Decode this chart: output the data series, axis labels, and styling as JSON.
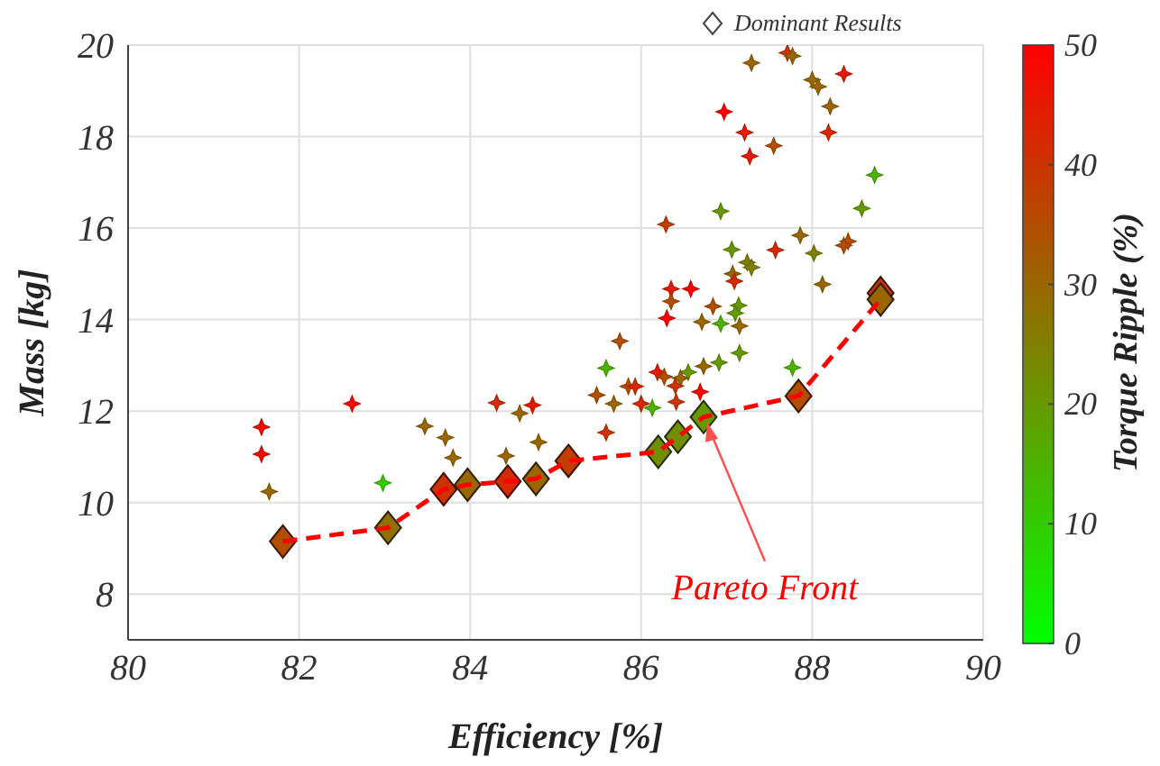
{
  "chart_data": {
    "type": "scatter",
    "xlabel": "Efficiency [%]",
    "ylabel": "Mass [kg]",
    "clabel": "Torque Ripple (%)",
    "xlim": [
      80,
      90
    ],
    "xticks": [
      80,
      82,
      84,
      86,
      88,
      90
    ],
    "ylim": [
      7,
      20
    ],
    "yticks": [
      8,
      10,
      12,
      14,
      16,
      18,
      20
    ],
    "clim": [
      0,
      50
    ],
    "cticks": [
      0,
      10,
      20,
      30,
      40,
      50
    ],
    "grid": true,
    "legend": "top right",
    "annotations": [
      {
        "text": "Pareto Front",
        "x": 86.73,
        "y": 11.87
      }
    ],
    "series": [
      {
        "marker": "star",
        "x": [
          81.56,
          81.56,
          81.65,
          82.62,
          82.98,
          83.47,
          83.71,
          83.8,
          84.31,
          84.58,
          84.73,
          84.42,
          84.8,
          85.48,
          85.59,
          85.59,
          85.68,
          85.85,
          85.93,
          86.0,
          85.75,
          87.29,
          87.71,
          87.77,
          88.0,
          88.07,
          88.37,
          86.97,
          87.21,
          87.27,
          87.55,
          88.21,
          88.19,
          88.73,
          88.58,
          86.93,
          86.29,
          87.06,
          87.86,
          87.57,
          88.02,
          88.42,
          88.37,
          87.24,
          87.29,
          87.07,
          87.09,
          86.35,
          86.58,
          86.35,
          86.3,
          86.84,
          87.14,
          87.1,
          87.15,
          86.71,
          86.93,
          88.12,
          87.15,
          87.77,
          86.91,
          86.73,
          86.55,
          86.46,
          86.19,
          86.27,
          86.4,
          86.69,
          86.13,
          86.41
        ],
        "values": [
          11.65,
          11.06,
          10.24,
          12.16,
          10.43,
          11.67,
          11.42,
          10.98,
          12.18,
          11.95,
          12.13,
          11.02,
          11.32,
          12.35,
          12.94,
          11.53,
          12.16,
          12.54,
          12.54,
          12.16,
          13.53,
          19.61,
          19.83,
          19.76,
          19.24,
          19.09,
          19.37,
          18.54,
          18.09,
          17.57,
          17.8,
          18.66,
          18.09,
          17.16,
          16.43,
          16.37,
          16.08,
          15.53,
          15.84,
          15.52,
          15.45,
          15.71,
          15.62,
          15.25,
          15.14,
          15.0,
          14.84,
          14.67,
          14.67,
          14.4,
          14.03,
          14.29,
          14.31,
          14.14,
          13.86,
          13.95,
          13.91,
          14.77,
          13.27,
          12.95,
          13.06,
          12.98,
          12.85,
          12.72,
          12.85,
          12.75,
          12.55,
          12.42,
          12.07,
          12.2
        ],
        "cvalues": [
          48,
          48,
          30,
          48,
          10,
          30,
          30,
          30,
          42,
          30,
          45,
          30,
          30,
          35,
          15,
          40,
          30,
          35,
          42,
          42,
          35,
          30,
          40,
          30,
          30,
          30,
          45,
          50,
          45,
          45,
          35,
          30,
          42,
          15,
          20,
          20,
          38,
          20,
          30,
          42,
          25,
          35,
          35,
          25,
          25,
          30,
          42,
          45,
          50,
          35,
          50,
          35,
          20,
          20,
          30,
          30,
          15,
          30,
          20,
          15,
          20,
          30,
          20,
          30,
          45,
          35,
          40,
          50,
          15,
          40
        ],
        "colors": [
          "#f50a00",
          "#f50a00",
          "#996600",
          "#f50a00",
          "#33cc00",
          "#996600",
          "#996600",
          "#996600",
          "#d62900",
          "#996600",
          "#e61a00",
          "#996600",
          "#996600",
          "#b34d00",
          "#4db300",
          "#cc3300",
          "#996600",
          "#b34d00",
          "#d62900",
          "#d62900",
          "#b34d00",
          "#996600",
          "#cc3300",
          "#996600",
          "#996600",
          "#996600",
          "#e61a00",
          "#ff0000",
          "#e61a00",
          "#e61a00",
          "#b34d00",
          "#996600",
          "#d62900",
          "#4db300",
          "#669900",
          "#669900",
          "#c23d00",
          "#669900",
          "#996600",
          "#d62900",
          "#808000",
          "#b34d00",
          "#b34d00",
          "#808000",
          "#808000",
          "#996600",
          "#d62900",
          "#e61a00",
          "#ff0000",
          "#b34d00",
          "#ff0000",
          "#b34d00",
          "#669900",
          "#669900",
          "#996600",
          "#996600",
          "#4db300",
          "#996600",
          "#669900",
          "#4db300",
          "#669900",
          "#996600",
          "#669900",
          "#996600",
          "#e61a00",
          "#b34d00",
          "#cc3300",
          "#ff0000",
          "#4db300",
          "#cc3300"
        ]
      },
      {
        "name": "Dominant Results",
        "marker": "diamond",
        "x": [
          81.81,
          83.04,
          83.69,
          83.97,
          84.44,
          84.77,
          85.15,
          86.2,
          86.43,
          86.73,
          87.84,
          88.8,
          88.8
        ],
        "values": [
          9.15,
          9.45,
          10.29,
          10.39,
          10.46,
          10.52,
          10.91,
          11.11,
          11.44,
          11.87,
          12.33,
          14.58,
          14.44
        ],
        "cvalues": [
          35,
          28,
          40,
          30,
          42,
          30,
          38,
          22,
          22,
          20,
          35,
          40,
          30
        ],
        "colors": [
          "#b34d00",
          "#8f7000",
          "#cc3300",
          "#996600",
          "#d62900",
          "#996600",
          "#c23d00",
          "#708f00",
          "#708f00",
          "#669900",
          "#b34d00",
          "#cc3300",
          "#996600"
        ]
      },
      {
        "type": "line",
        "color": "#ff0000",
        "line_style": "dashed",
        "marker": "none",
        "x": [
          81.81,
          83.04,
          83.69,
          83.97,
          84.44,
          84.77,
          85.15,
          86.2,
          86.43,
          86.73,
          87.84,
          88.8
        ],
        "values": [
          9.15,
          9.45,
          10.29,
          10.39,
          10.46,
          10.52,
          10.91,
          11.11,
          11.44,
          11.87,
          12.33,
          14.44
        ]
      }
    ]
  }
}
